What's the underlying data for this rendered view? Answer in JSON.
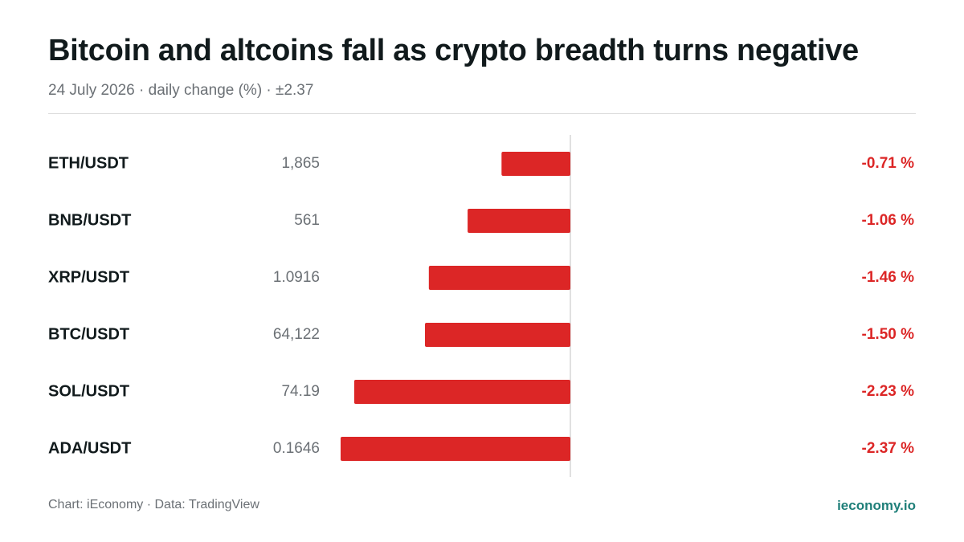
{
  "header": {
    "title": "Bitcoin and altcoins fall as crypto breadth turns negative",
    "subtitle": "24 July 2026 · daily change (%) · ±2.37"
  },
  "colors": {
    "negative": "#dc2626",
    "axis": "#d6d6d6",
    "brand": "#1f7f79"
  },
  "chart_data": {
    "type": "bar",
    "orientation": "horizontal",
    "value_unit": "%",
    "domain_abs_max": 2.37,
    "rows": [
      {
        "pair": "ETH/USDT",
        "price": "1,865",
        "change": -0.71,
        "change_label": "-0.71 %"
      },
      {
        "pair": "BNB/USDT",
        "price": "561",
        "change": -1.06,
        "change_label": "-1.06 %"
      },
      {
        "pair": "XRP/USDT",
        "price": "1.0916",
        "change": -1.46,
        "change_label": "-1.46 %"
      },
      {
        "pair": "BTC/USDT",
        "price": "64,122",
        "change": -1.5,
        "change_label": "-1.50 %"
      },
      {
        "pair": "SOL/USDT",
        "price": "74.19",
        "change": -2.23,
        "change_label": "-2.23 %"
      },
      {
        "pair": "ADA/USDT",
        "price": "0.1646",
        "change": -2.37,
        "change_label": "-2.37 %"
      }
    ]
  },
  "footer": {
    "credit": "Chart: iEconomy · Data: TradingView",
    "brand": "ieconomy.io"
  }
}
